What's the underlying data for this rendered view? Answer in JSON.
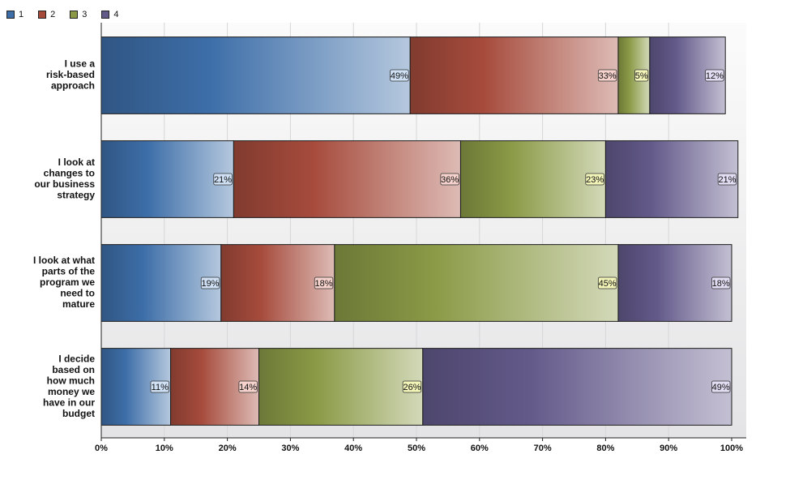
{
  "chart_data": {
    "type": "bar",
    "orientation": "horizontal",
    "stacked": true,
    "categories": [
      "I use a risk-based approach",
      "I look at changes to our business strategy",
      "I look at what parts of the program we need to mature",
      "I decide based on how much money we have in our budget"
    ],
    "category_lines": [
      [
        "I use a",
        "risk-based",
        "approach"
      ],
      [
        "I look at",
        "changes to",
        "our business",
        "strategy"
      ],
      [
        "I look at what",
        "parts of the",
        "program we",
        "need to",
        "mature"
      ],
      [
        "I decide",
        "based on",
        "how much",
        "money we",
        "have in our",
        "budget"
      ]
    ],
    "series": [
      {
        "name": "1",
        "values": [
          49,
          21,
          19,
          11
        ],
        "labels": [
          "49%",
          "21%",
          "19%",
          "11%"
        ],
        "color": "#3d6ea8",
        "label_bg": "#cfe0f5"
      },
      {
        "name": "2",
        "values": [
          33,
          36,
          18,
          14
        ],
        "labels": [
          "33%",
          "36%",
          "18%",
          "14%"
        ],
        "color": "#a64b3c",
        "label_bg": "#f6d2cc"
      },
      {
        "name": "3",
        "values": [
          5,
          23,
          45,
          26
        ],
        "labels": [
          "5%",
          "23%",
          "45%",
          "26%"
        ],
        "color": "#8a9a46",
        "label_bg": "#f2f4b8"
      },
      {
        "name": "4",
        "values": [
          12,
          21,
          18,
          49
        ],
        "labels": [
          "12%",
          "21%",
          "18%",
          "49%"
        ],
        "color": "#635a8a",
        "label_bg": "#e2ddf2"
      }
    ],
    "xlim": [
      0,
      100
    ],
    "x_ticks": [
      "0%",
      "10%",
      "20%",
      "30%",
      "40%",
      "50%",
      "60%",
      "70%",
      "80%",
      "90%",
      "100%"
    ],
    "grid": true,
    "legend_position": "top-left",
    "title": "",
    "xlabel": "",
    "ylabel": ""
  }
}
